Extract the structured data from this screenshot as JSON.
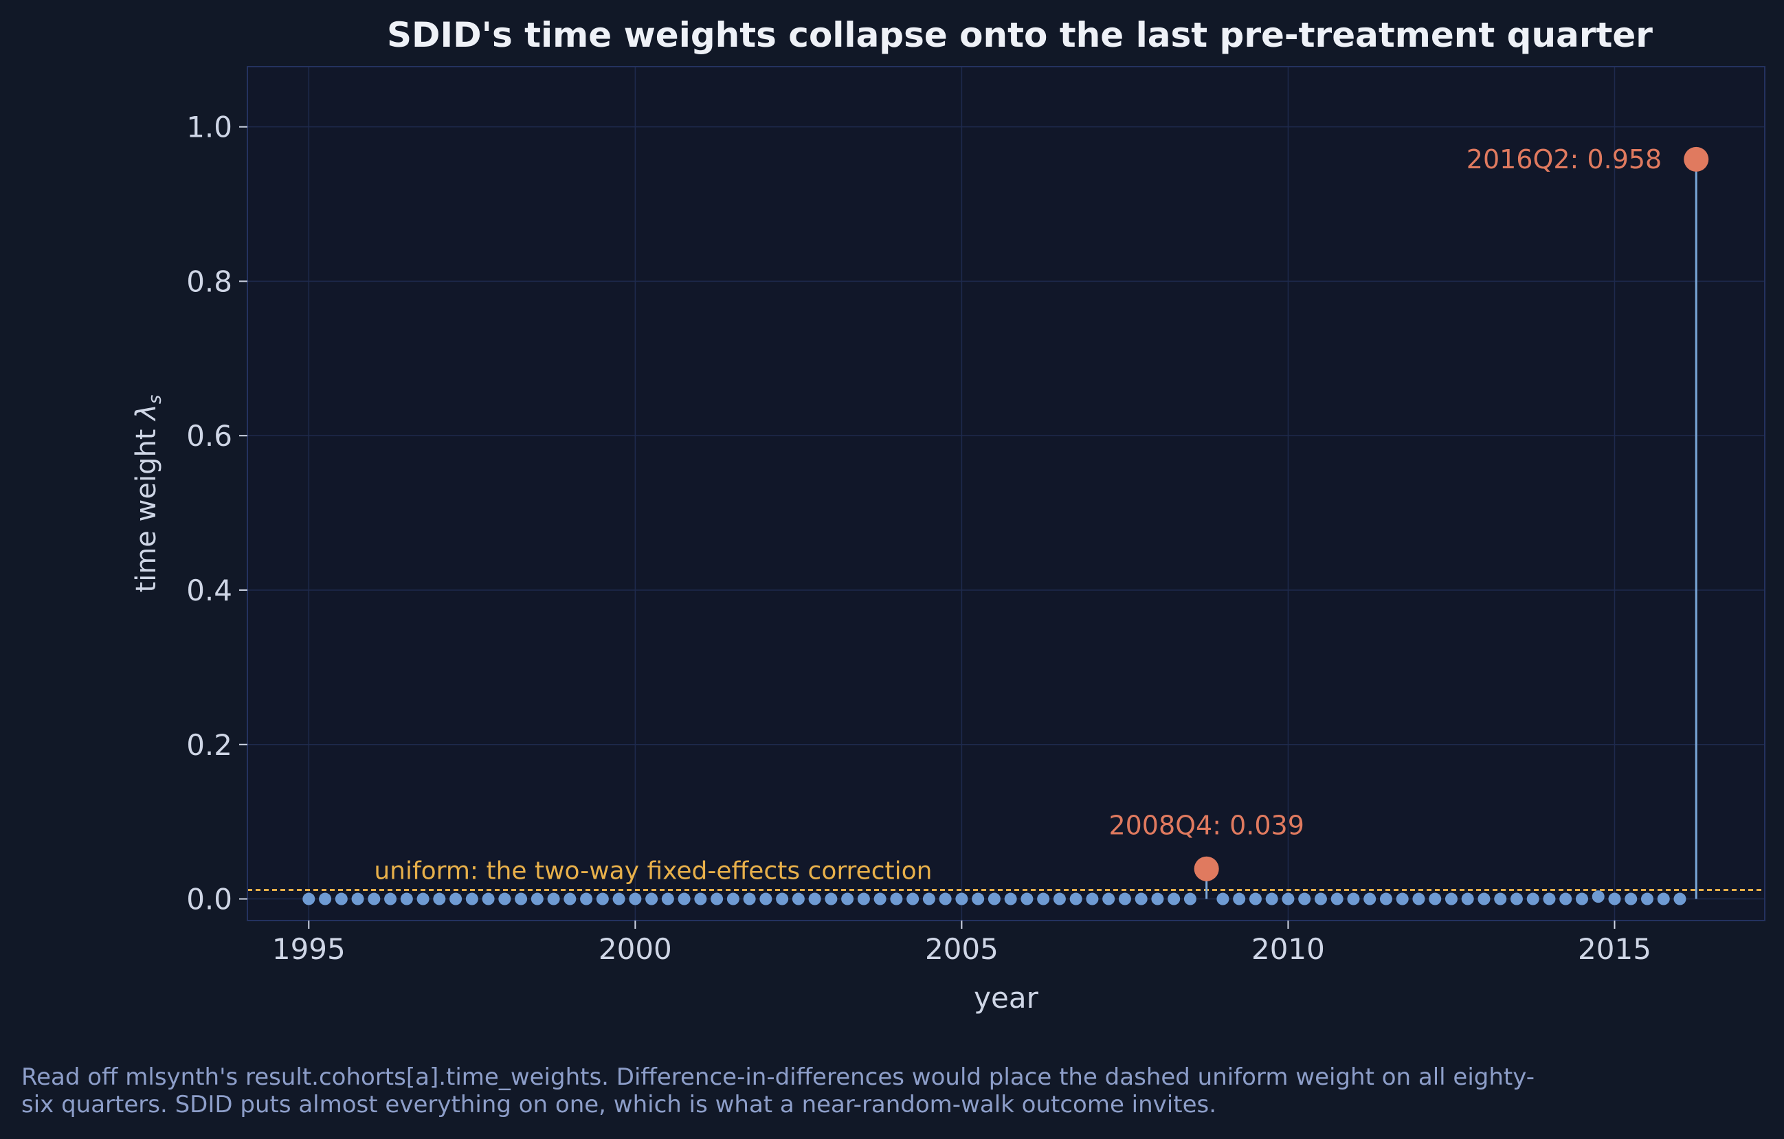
{
  "chart_data": {
    "type": "scatter",
    "title": "SDID's time weights collapse onto the last pre-treatment quarter",
    "xlabel": "year",
    "ylabel_text": "time weight ",
    "ylabel_symbol": "λ",
    "ylabel_subscript": "s",
    "xlim": [
      1994.06,
      2017.3
    ],
    "ylim": [
      -0.028,
      1.078
    ],
    "x_ticks": [
      1995,
      2000,
      2005,
      2010,
      2015
    ],
    "x_tick_labels": [
      "1995",
      "2000",
      "2005",
      "2010",
      "2015"
    ],
    "y_ticks": [
      0.0,
      0.2,
      0.4,
      0.6,
      0.8,
      1.0
    ],
    "y_tick_labels": [
      "0.0",
      "0.2",
      "0.4",
      "0.6",
      "0.8",
      "1.0"
    ],
    "grid": true,
    "series": [
      {
        "x_start": 1995.0,
        "x_step": 0.25,
        "count": 86,
        "values": [
          0,
          0,
          0,
          0,
          0,
          0,
          0,
          0,
          0,
          0,
          0,
          0,
          0,
          0,
          0,
          0,
          0,
          0,
          0,
          0,
          0,
          0,
          0,
          0,
          0,
          0,
          0,
          0,
          0,
          0,
          0,
          0,
          0,
          0,
          0,
          0,
          0,
          0,
          0,
          0,
          0,
          0,
          0,
          0,
          0,
          0,
          0,
          0,
          0,
          0,
          0,
          0,
          0,
          0,
          0,
          0.039,
          0,
          0,
          0,
          0,
          0,
          0,
          0,
          0,
          0,
          0,
          0,
          0,
          0,
          0,
          0,
          0,
          0,
          0,
          0,
          0,
          0,
          0,
          0,
          0.003,
          0,
          0,
          0,
          0,
          0,
          0.958
        ]
      }
    ],
    "highlights": [
      {
        "label": "2008Q4: 0.039",
        "x": 2008.75,
        "y": 0.039
      },
      {
        "label": "2016Q2: 0.958",
        "x": 2016.25,
        "y": 0.958
      }
    ],
    "reference_line": {
      "y": 0.0116,
      "label": "uniform: the two-way fixed-effects correction"
    },
    "colors": {
      "background": "#111827",
      "plot_background": "#111729",
      "axes_edge": "#24325f",
      "grid": "#1e2a4d",
      "text": "#cfd6e6",
      "title": "#eef1f7",
      "points": "#6f9bd3",
      "stem": "#7aa7d8",
      "highlight": "#e07a5f",
      "reference": "#e8b04a",
      "caption": "#8d9ec9"
    }
  },
  "caption_line1": "Read off mlsynth's result.cohorts[a].time_weights. Difference-in-differences would place the dashed uniform weight on all eighty-",
  "caption_line2": "six quarters. SDID puts almost everything on one, which is what a near-random-walk outcome invites."
}
